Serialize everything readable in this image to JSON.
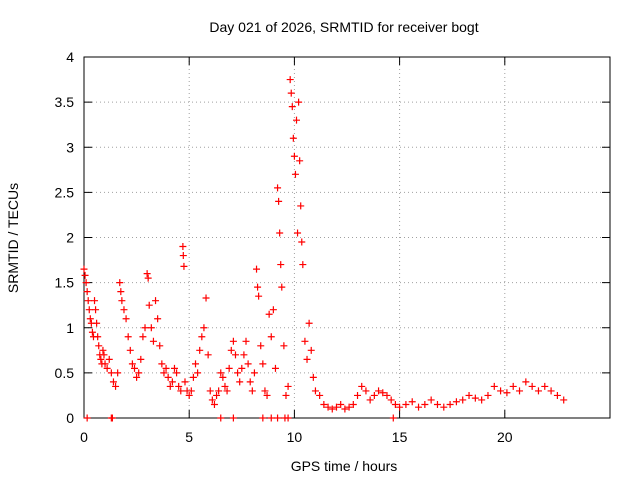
{
  "chart_data": {
    "type": "scatter",
    "title": "Day 021 of 2026, SRMTID for receiver bogt",
    "xlabel": "GPS time / hours",
    "ylabel": "SRMTID / TECUs",
    "xlim": [
      0,
      25
    ],
    "ylim": [
      0,
      4
    ],
    "x_ticks": [
      0,
      5,
      10,
      15,
      20
    ],
    "x_tick_labels": [
      "0",
      "5",
      "10",
      "15",
      "20"
    ],
    "y_ticks": [
      0,
      0.5,
      1,
      1.5,
      2,
      2.5,
      3,
      3.5,
      4
    ],
    "y_tick_labels": [
      "0",
      "0.5",
      "1",
      "1.5",
      "2",
      "2.5",
      "3",
      "3.5",
      "4"
    ],
    "grid": true,
    "marker": "+",
    "series": [
      {
        "name": "SRMTID",
        "color": "#ff0000",
        "points": [
          [
            0.0,
            1.65
          ],
          [
            0.05,
            1.58
          ],
          [
            0.1,
            1.5
          ],
          [
            0.15,
            1.4
          ],
          [
            0.2,
            1.3
          ],
          [
            0.25,
            1.2
          ],
          [
            0.3,
            1.1
          ],
          [
            0.35,
            1.05
          ],
          [
            0.4,
            0.95
          ],
          [
            0.45,
            0.9
          ],
          [
            0.5,
            1.3
          ],
          [
            0.55,
            1.2
          ],
          [
            0.6,
            1.05
          ],
          [
            0.65,
            0.9
          ],
          [
            0.7,
            0.8
          ],
          [
            0.75,
            0.7
          ],
          [
            0.8,
            0.65
          ],
          [
            0.85,
            0.6
          ],
          [
            0.9,
            0.75
          ],
          [
            0.95,
            0.7
          ],
          [
            1.0,
            0.6
          ],
          [
            1.1,
            0.55
          ],
          [
            1.2,
            0.65
          ],
          [
            1.3,
            0.5
          ],
          [
            1.4,
            0.4
          ],
          [
            1.5,
            0.35
          ],
          [
            1.6,
            0.5
          ],
          [
            1.7,
            1.5
          ],
          [
            1.75,
            1.4
          ],
          [
            1.8,
            1.3
          ],
          [
            1.9,
            1.2
          ],
          [
            2.0,
            1.1
          ],
          [
            2.1,
            0.9
          ],
          [
            2.2,
            0.75
          ],
          [
            2.3,
            0.6
          ],
          [
            2.4,
            0.55
          ],
          [
            2.5,
            0.45
          ],
          [
            2.6,
            0.5
          ],
          [
            2.7,
            0.65
          ],
          [
            2.8,
            0.9
          ],
          [
            2.9,
            1.0
          ],
          [
            3.0,
            1.6
          ],
          [
            3.05,
            1.55
          ],
          [
            3.1,
            1.25
          ],
          [
            3.2,
            1.0
          ],
          [
            3.3,
            0.85
          ],
          [
            3.4,
            1.3
          ],
          [
            3.5,
            1.1
          ],
          [
            3.6,
            0.8
          ],
          [
            3.7,
            0.6
          ],
          [
            3.8,
            0.5
          ],
          [
            3.9,
            0.55
          ],
          [
            4.0,
            0.45
          ],
          [
            4.1,
            0.35
          ],
          [
            4.2,
            0.4
          ],
          [
            4.3,
            0.55
          ],
          [
            4.4,
            0.5
          ],
          [
            4.5,
            0.35
          ],
          [
            4.6,
            0.3
          ],
          [
            4.7,
            1.9
          ],
          [
            4.72,
            1.8
          ],
          [
            4.75,
            1.68
          ],
          [
            4.8,
            0.4
          ],
          [
            4.9,
            0.3
          ],
          [
            5.0,
            0.25
          ],
          [
            5.1,
            0.3
          ],
          [
            5.2,
            0.45
          ],
          [
            5.3,
            0.6
          ],
          [
            5.4,
            0.5
          ],
          [
            5.5,
            0.75
          ],
          [
            5.6,
            0.9
          ],
          [
            5.7,
            1.0
          ],
          [
            5.8,
            1.33
          ],
          [
            5.9,
            0.7
          ],
          [
            6.0,
            0.3
          ],
          [
            6.1,
            0.2
          ],
          [
            6.2,
            0.15
          ],
          [
            6.3,
            0.25
          ],
          [
            6.4,
            0.3
          ],
          [
            6.5,
            0.5
          ],
          [
            6.6,
            0.45
          ],
          [
            6.7,
            0.35
          ],
          [
            6.8,
            0.3
          ],
          [
            6.9,
            0.55
          ],
          [
            7.0,
            0.75
          ],
          [
            7.1,
            0.85
          ],
          [
            7.2,
            0.7
          ],
          [
            7.3,
            0.5
          ],
          [
            7.4,
            0.4
          ],
          [
            7.5,
            0.55
          ],
          [
            7.6,
            0.7
          ],
          [
            7.7,
            0.85
          ],
          [
            7.8,
            0.6
          ],
          [
            7.9,
            0.4
          ],
          [
            8.0,
            0.3
          ],
          [
            8.1,
            0.5
          ],
          [
            8.2,
            1.65
          ],
          [
            8.25,
            1.45
          ],
          [
            8.3,
            1.35
          ],
          [
            8.4,
            0.8
          ],
          [
            8.5,
            0.6
          ],
          [
            8.6,
            0.3
          ],
          [
            8.7,
            0.25
          ],
          [
            8.8,
            1.15
          ],
          [
            8.9,
            0.9
          ],
          [
            9.0,
            1.2
          ],
          [
            9.1,
            0.55
          ],
          [
            9.2,
            2.55
          ],
          [
            9.25,
            2.4
          ],
          [
            9.3,
            2.05
          ],
          [
            9.35,
            1.7
          ],
          [
            9.4,
            1.45
          ],
          [
            9.5,
            0.8
          ],
          [
            9.6,
            0.25
          ],
          [
            9.7,
            0.35
          ],
          [
            9.8,
            3.75
          ],
          [
            9.85,
            3.6
          ],
          [
            9.9,
            3.45
          ],
          [
            9.95,
            3.1
          ],
          [
            10.0,
            2.9
          ],
          [
            10.05,
            2.7
          ],
          [
            10.1,
            3.3
          ],
          [
            10.15,
            2.05
          ],
          [
            10.2,
            3.5
          ],
          [
            10.25,
            2.85
          ],
          [
            10.3,
            2.35
          ],
          [
            10.35,
            1.95
          ],
          [
            10.4,
            1.7
          ],
          [
            10.5,
            0.85
          ],
          [
            10.6,
            0.65
          ],
          [
            10.7,
            1.05
          ],
          [
            10.8,
            0.75
          ],
          [
            10.9,
            0.45
          ],
          [
            11.0,
            0.3
          ],
          [
            11.2,
            0.25
          ],
          [
            11.4,
            0.15
          ],
          [
            11.6,
            0.12
          ],
          [
            11.8,
            0.1
          ],
          [
            12.0,
            0.12
          ],
          [
            12.2,
            0.15
          ],
          [
            12.4,
            0.1
          ],
          [
            12.6,
            0.12
          ],
          [
            12.8,
            0.15
          ],
          [
            13.0,
            0.25
          ],
          [
            13.2,
            0.35
          ],
          [
            13.4,
            0.3
          ],
          [
            13.6,
            0.2
          ],
          [
            13.8,
            0.25
          ],
          [
            14.0,
            0.3
          ],
          [
            14.2,
            0.28
          ],
          [
            14.4,
            0.25
          ],
          [
            14.6,
            0.2
          ],
          [
            14.8,
            0.15
          ],
          [
            15.0,
            0.12
          ],
          [
            15.3,
            0.15
          ],
          [
            15.6,
            0.18
          ],
          [
            15.9,
            0.12
          ],
          [
            16.2,
            0.15
          ],
          [
            16.5,
            0.2
          ],
          [
            16.8,
            0.15
          ],
          [
            17.1,
            0.12
          ],
          [
            17.4,
            0.15
          ],
          [
            17.7,
            0.18
          ],
          [
            18.0,
            0.2
          ],
          [
            18.3,
            0.25
          ],
          [
            18.6,
            0.22
          ],
          [
            18.9,
            0.2
          ],
          [
            19.2,
            0.25
          ],
          [
            19.5,
            0.35
          ],
          [
            19.8,
            0.3
          ],
          [
            20.1,
            0.28
          ],
          [
            20.4,
            0.35
          ],
          [
            20.7,
            0.3
          ],
          [
            21.0,
            0.4
          ],
          [
            21.3,
            0.35
          ],
          [
            21.6,
            0.3
          ],
          [
            21.9,
            0.35
          ],
          [
            22.2,
            0.3
          ],
          [
            22.5,
            0.25
          ],
          [
            22.8,
            0.2
          ],
          [
            0.15,
            0.0
          ],
          [
            1.3,
            0.0
          ],
          [
            1.35,
            0.0
          ],
          [
            6.5,
            0.0
          ],
          [
            7.1,
            0.0
          ],
          [
            8.5,
            0.0
          ],
          [
            8.9,
            0.0
          ],
          [
            9.2,
            0.0
          ],
          [
            9.55,
            0.0
          ],
          [
            9.7,
            0.0
          ],
          [
            14.7,
            0.0
          ]
        ]
      }
    ]
  }
}
